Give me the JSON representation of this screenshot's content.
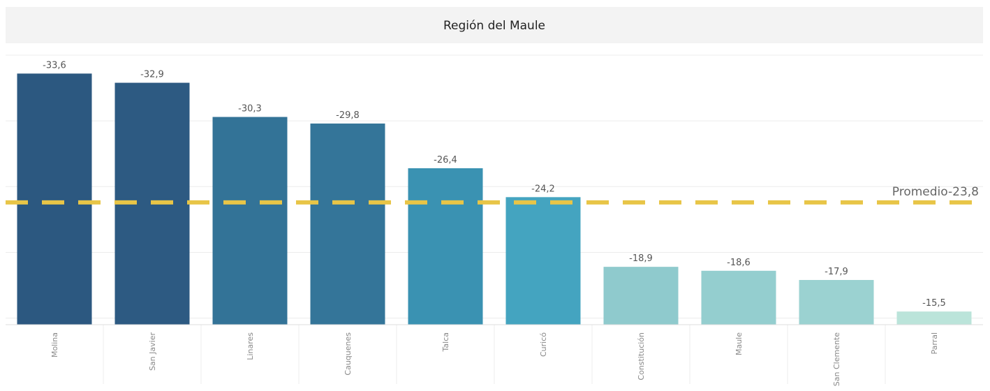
{
  "chart_data": {
    "type": "bar",
    "title": "Región del Maule",
    "categories": [
      "Molina",
      "San Javier",
      "Linares",
      "Cauquenes",
      "Talca",
      "Curicó",
      "Constitución",
      "Maule",
      "San Clemente",
      "Parral"
    ],
    "values": [
      -33.6,
      -32.9,
      -30.3,
      -29.8,
      -26.4,
      -24.2,
      -18.9,
      -18.6,
      -17.9,
      -15.5
    ],
    "value_labels": [
      "-33,6",
      "-32,9",
      "-30,3",
      "-29,8",
      "-26,4",
      "-24,2",
      "-18,9",
      "-18,6",
      "-17,9",
      "-15,5"
    ],
    "colors": [
      "#2c5880",
      "#2d5a82",
      "#337397",
      "#347599",
      "#3a92b2",
      "#44a4c0",
      "#8fcacd",
      "#94cecf",
      "#9bd2d1",
      "#bbe4da"
    ],
    "ylim": [
      -14.5,
      -35
    ],
    "yticks": [
      -15,
      -20,
      -25,
      -30,
      -35
    ],
    "grid": true,
    "average_line": {
      "value": -23.8,
      "label": "Promedio-23,8",
      "color": "#e8c547"
    }
  }
}
